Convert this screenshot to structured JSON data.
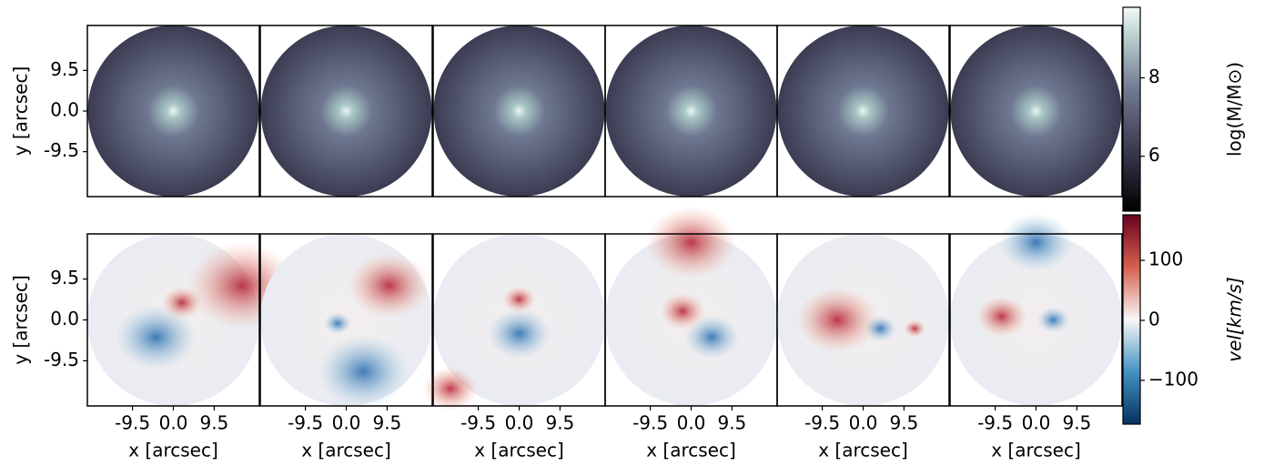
{
  "chart_data": [
    {
      "type": "heatmap",
      "ylabel": "y [arcsec]",
      "ylim": [
        -20,
        20
      ],
      "yticks": [
        {
          "value": -9.5,
          "label": "-9.5"
        },
        {
          "value": 0,
          "label": "0.0"
        },
        {
          "value": 9.5,
          "label": "9.5"
        }
      ],
      "colorbar": {
        "label": "log(M/M⊙)",
        "lim": [
          4.6,
          9.8
        ],
        "ticks": [
          6,
          8
        ]
      }
    },
    {
      "type": "heatmap",
      "xlabel": "x [arcsec]",
      "ylabel": "y [arcsec]",
      "xlim": [
        -20,
        20
      ],
      "ylim": [
        -20,
        20
      ],
      "xticks": [
        {
          "value": -9.5,
          "label": "-9.5"
        },
        {
          "value": 0,
          "label": "0.0"
        },
        {
          "value": 9.5,
          "label": "9.5"
        }
      ],
      "yticks": [
        {
          "value": -9.5,
          "label": "-9.5"
        },
        {
          "value": 0,
          "label": "0.0"
        },
        {
          "value": 9.5,
          "label": "9.5"
        }
      ],
      "colorbar": {
        "label": "vel[km/s]",
        "lim": [
          -173,
          176
        ],
        "ticks": [
          {
            "value": -100,
            "label": "−100"
          },
          0,
          100
        ]
      }
    }
  ]
}
